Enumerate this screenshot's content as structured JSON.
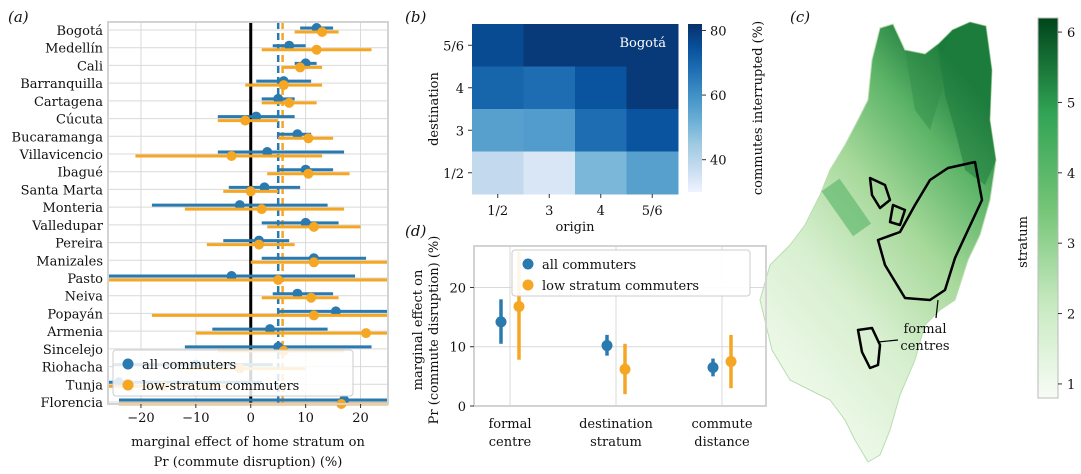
{
  "colors": {
    "blue": "#2a7ab0",
    "orange": "#f5a623",
    "frame": "#d3d3d3",
    "grid": "#d9d9d9"
  },
  "panel_labels": {
    "a": "(a)",
    "b": "(b)",
    "c": "(c)",
    "d": "(d)"
  },
  "chart_data": [
    {
      "id": "a",
      "type": "forest",
      "xlabel": "marginal effect of home stratum on",
      "xlabel2": "Pr (commute disruption) (%)",
      "xlim": [
        -26,
        25
      ],
      "xticks": [
        -20,
        -10,
        0,
        10,
        20
      ],
      "tick_labels": [
        "−20",
        "−10",
        "0",
        "10",
        "20"
      ],
      "categories": [
        "Bogotá",
        "Medellín",
        "Cali",
        "Barranquilla",
        "Cartagena",
        "Cúcuta",
        "Bucaramanga",
        "Villavicencio",
        "Ibagué",
        "Santa Marta",
        "Monteria",
        "Valledupar",
        "Pereira",
        "Manizales",
        "Pasto",
        "Neiva",
        "Popayán",
        "Armenia",
        "Sincelejo",
        "Riohacha",
        "Tunja",
        "Florencia"
      ],
      "series": [
        {
          "name": "all commuters",
          "est": [
            12,
            7,
            10,
            6,
            5,
            1,
            8.5,
            3,
            10,
            2.5,
            -2,
            10,
            1.5,
            11.5,
            -3.5,
            8.5,
            15.5,
            3.5,
            5,
            -10,
            -24,
            17
          ],
          "lo": [
            9,
            4,
            8,
            1,
            2,
            -6,
            5,
            -6,
            5,
            -4,
            -18,
            2,
            -5,
            2,
            -26,
            4,
            5,
            -7,
            -12,
            -25,
            -26,
            -24
          ],
          "hi": [
            15,
            10,
            12,
            11,
            8,
            8,
            11,
            17,
            15,
            9,
            14,
            16,
            7,
            21,
            19,
            15,
            25,
            14,
            22,
            4,
            2,
            25
          ]
        },
        {
          "name": "low-stratum commuters",
          "est": [
            13,
            12,
            9,
            6,
            7,
            -1,
            10.5,
            -3.5,
            10.5,
            0,
            2,
            11.5,
            1.5,
            11.5,
            5,
            11,
            11.5,
            21,
            6,
            -2,
            -16,
            16.5
          ],
          "lo": [
            8,
            2,
            6,
            -1,
            2,
            -6,
            5,
            -21,
            3,
            -5,
            -12,
            3,
            -8,
            0,
            -26,
            2,
            -18,
            -10,
            -6,
            -12,
            -26,
            -24
          ],
          "hi": [
            16,
            22,
            13,
            13,
            12,
            5,
            15,
            13,
            18,
            5,
            17,
            20,
            8,
            25,
            25,
            16,
            25,
            25,
            17,
            10,
            -4,
            25
          ]
        }
      ],
      "ref_lines": {
        "all": 5,
        "low": 5.8
      },
      "legend": {
        "position": "lower-left",
        "items": [
          "all commuters",
          "low-stratum commuters"
        ]
      }
    },
    {
      "id": "b",
      "type": "heatmap",
      "annotation": "Bogotá",
      "xlabel": "origin",
      "ylabel": "destination",
      "x_categories": [
        "1/2",
        "3",
        "4",
        "5/6"
      ],
      "y_categories": [
        "5/6",
        "4",
        "3",
        "1/2"
      ],
      "values": [
        [
          76,
          80,
          80,
          80
        ],
        [
          70,
          68,
          74,
          80
        ],
        [
          56,
          57,
          68,
          74
        ],
        [
          38,
          34,
          50,
          56
        ]
      ],
      "colorbar": {
        "label": "commutes interrupted (%)",
        "ticks": [
          40,
          60,
          80
        ],
        "range": [
          30,
          82
        ]
      }
    },
    {
      "id": "c",
      "type": "map",
      "annotation": "formal\ncentres",
      "colorbar": {
        "label": "stratum",
        "ticks": [
          1,
          2,
          3,
          4,
          5,
          6
        ],
        "range": [
          0.8,
          6.2
        ]
      }
    },
    {
      "id": "d",
      "type": "errorbar",
      "ylabel": "marginal effect on",
      "ylabel2": "Pr (commute disruption) (%)",
      "ylim": [
        0,
        27
      ],
      "yticks": [
        0,
        10,
        20
      ],
      "categories": [
        "formal\ncentre",
        "destination\nstratum",
        "commute\ndistance"
      ],
      "series": [
        {
          "name": "all commuters",
          "est": [
            14.2,
            10.2,
            6.5
          ],
          "lo": [
            10.5,
            8.5,
            5
          ],
          "hi": [
            18,
            12,
            8
          ]
        },
        {
          "name": "low stratum commuters",
          "est": [
            16.8,
            6.2,
            7.5
          ],
          "lo": [
            7.8,
            2,
            3
          ],
          "hi": [
            26,
            10.5,
            12
          ]
        }
      ],
      "legend": {
        "position": "top-right",
        "items": [
          "all commuters",
          "low stratum commuters"
        ]
      }
    }
  ]
}
